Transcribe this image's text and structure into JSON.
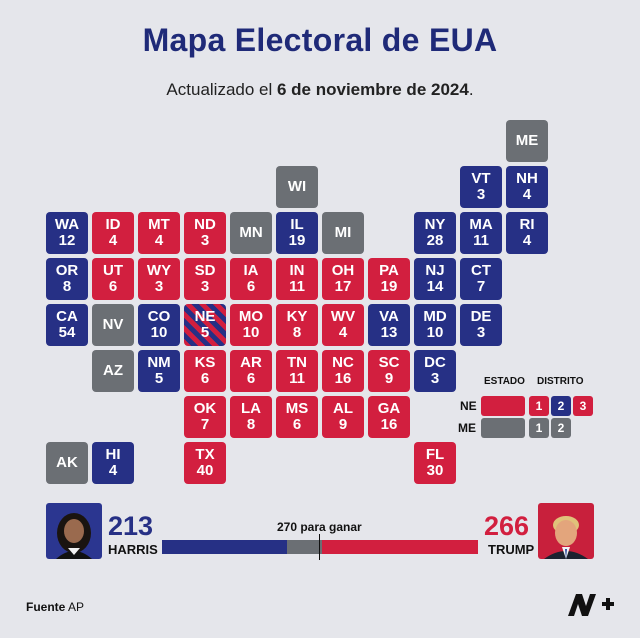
{
  "title": "Mapa Electoral de EUA",
  "subtitle": {
    "prefix": "Actualizado el",
    "date": "6 de noviembre de 2024",
    "suffix": "."
  },
  "colors": {
    "dem": "#263085",
    "rep": "#d21f3f",
    "undecided": "#6b6f74"
  },
  "chart_data": {
    "type": "table",
    "states": [
      {
        "abbr": "ME",
        "ev": "",
        "party": "und",
        "col": 10,
        "row": 0
      },
      {
        "abbr": "WI",
        "ev": "",
        "party": "und",
        "col": 5,
        "row": 1
      },
      {
        "abbr": "VT",
        "ev": "3",
        "party": "dem",
        "col": 9,
        "row": 1
      },
      {
        "abbr": "NH",
        "ev": "4",
        "party": "dem",
        "col": 10,
        "row": 1
      },
      {
        "abbr": "WA",
        "ev": "12",
        "party": "dem",
        "col": 0,
        "row": 2
      },
      {
        "abbr": "ID",
        "ev": "4",
        "party": "rep",
        "col": 1,
        "row": 2
      },
      {
        "abbr": "MT",
        "ev": "4",
        "party": "rep",
        "col": 2,
        "row": 2
      },
      {
        "abbr": "ND",
        "ev": "3",
        "party": "rep",
        "col": 3,
        "row": 2
      },
      {
        "abbr": "MN",
        "ev": "",
        "party": "und",
        "col": 4,
        "row": 2
      },
      {
        "abbr": "IL",
        "ev": "19",
        "party": "dem",
        "col": 5,
        "row": 2
      },
      {
        "abbr": "MI",
        "ev": "",
        "party": "und",
        "col": 6,
        "row": 2
      },
      {
        "abbr": "NY",
        "ev": "28",
        "party": "dem",
        "col": 8,
        "row": 2
      },
      {
        "abbr": "MA",
        "ev": "11",
        "party": "dem",
        "col": 9,
        "row": 2
      },
      {
        "abbr": "RI",
        "ev": "4",
        "party": "dem",
        "col": 10,
        "row": 2
      },
      {
        "abbr": "OR",
        "ev": "8",
        "party": "dem",
        "col": 0,
        "row": 3
      },
      {
        "abbr": "UT",
        "ev": "6",
        "party": "rep",
        "col": 1,
        "row": 3
      },
      {
        "abbr": "WY",
        "ev": "3",
        "party": "rep",
        "col": 2,
        "row": 3
      },
      {
        "abbr": "SD",
        "ev": "3",
        "party": "rep",
        "col": 3,
        "row": 3
      },
      {
        "abbr": "IA",
        "ev": "6",
        "party": "rep",
        "col": 4,
        "row": 3
      },
      {
        "abbr": "IN",
        "ev": "11",
        "party": "rep",
        "col": 5,
        "row": 3
      },
      {
        "abbr": "OH",
        "ev": "17",
        "party": "rep",
        "col": 6,
        "row": 3
      },
      {
        "abbr": "PA",
        "ev": "19",
        "party": "rep",
        "col": 7,
        "row": 3
      },
      {
        "abbr": "NJ",
        "ev": "14",
        "party": "dem",
        "col": 8,
        "row": 3
      },
      {
        "abbr": "CT",
        "ev": "7",
        "party": "dem",
        "col": 9,
        "row": 3
      },
      {
        "abbr": "CA",
        "ev": "54",
        "party": "dem",
        "col": 0,
        "row": 4
      },
      {
        "abbr": "NV",
        "ev": "",
        "party": "und",
        "col": 1,
        "row": 4
      },
      {
        "abbr": "CO",
        "ev": "10",
        "party": "dem",
        "col": 2,
        "row": 4
      },
      {
        "abbr": "NE",
        "ev": "5",
        "party": "split",
        "col": 3,
        "row": 4
      },
      {
        "abbr": "MO",
        "ev": "10",
        "party": "rep",
        "col": 4,
        "row": 4
      },
      {
        "abbr": "KY",
        "ev": "8",
        "party": "rep",
        "col": 5,
        "row": 4
      },
      {
        "abbr": "WV",
        "ev": "4",
        "party": "rep",
        "col": 6,
        "row": 4
      },
      {
        "abbr": "VA",
        "ev": "13",
        "party": "dem",
        "col": 7,
        "row": 4
      },
      {
        "abbr": "MD",
        "ev": "10",
        "party": "dem",
        "col": 8,
        "row": 4
      },
      {
        "abbr": "DE",
        "ev": "3",
        "party": "dem",
        "col": 9,
        "row": 4
      },
      {
        "abbr": "AZ",
        "ev": "",
        "party": "und",
        "col": 1,
        "row": 5
      },
      {
        "abbr": "NM",
        "ev": "5",
        "party": "dem",
        "col": 2,
        "row": 5
      },
      {
        "abbr": "KS",
        "ev": "6",
        "party": "rep",
        "col": 3,
        "row": 5
      },
      {
        "abbr": "AR",
        "ev": "6",
        "party": "rep",
        "col": 4,
        "row": 5
      },
      {
        "abbr": "TN",
        "ev": "11",
        "party": "rep",
        "col": 5,
        "row": 5
      },
      {
        "abbr": "NC",
        "ev": "16",
        "party": "rep",
        "col": 6,
        "row": 5
      },
      {
        "abbr": "SC",
        "ev": "9",
        "party": "rep",
        "col": 7,
        "row": 5
      },
      {
        "abbr": "DC",
        "ev": "3",
        "party": "dem",
        "col": 8,
        "row": 5
      },
      {
        "abbr": "OK",
        "ev": "7",
        "party": "rep",
        "col": 3,
        "row": 6
      },
      {
        "abbr": "LA",
        "ev": "8",
        "party": "rep",
        "col": 4,
        "row": 6
      },
      {
        "abbr": "MS",
        "ev": "6",
        "party": "rep",
        "col": 5,
        "row": 6
      },
      {
        "abbr": "AL",
        "ev": "9",
        "party": "rep",
        "col": 6,
        "row": 6
      },
      {
        "abbr": "GA",
        "ev": "16",
        "party": "rep",
        "col": 7,
        "row": 6
      },
      {
        "abbr": "AK",
        "ev": "",
        "party": "und",
        "col": 0,
        "row": 7
      },
      {
        "abbr": "HI",
        "ev": "4",
        "party": "dem",
        "col": 1,
        "row": 7
      },
      {
        "abbr": "TX",
        "ev": "40",
        "party": "rep",
        "col": 3,
        "row": 7
      },
      {
        "abbr": "FL",
        "ev": "30",
        "party": "rep",
        "col": 8,
        "row": 7
      }
    ]
  },
  "legend": {
    "estado": "ESTADO",
    "distrito": "DISTRITO",
    "ne": {
      "label": "NE",
      "state_party": "rep",
      "districts": [
        {
          "num": "1",
          "party": "rep"
        },
        {
          "num": "2",
          "party": "dem"
        },
        {
          "num": "3",
          "party": "rep"
        }
      ]
    },
    "me": {
      "label": "ME",
      "state_party": "und",
      "districts": [
        {
          "num": "1",
          "party": "und"
        },
        {
          "num": "2",
          "party": "und"
        }
      ]
    }
  },
  "tally": {
    "harris": {
      "count": "213",
      "name": "HARRIS",
      "votes": 213
    },
    "trump": {
      "count": "266",
      "name": "TRUMP",
      "votes": 266
    },
    "goal_label": "270 para ganar",
    "total": 538
  },
  "footer": {
    "source_label": "Fuente",
    "source_value": "AP"
  }
}
